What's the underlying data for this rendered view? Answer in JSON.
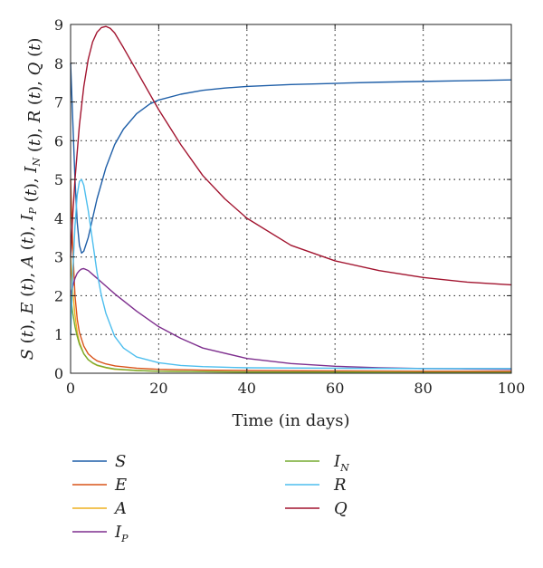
{
  "chart_data": {
    "type": "line",
    "xlabel": "Time (in days)",
    "ylabel_parts": [
      {
        "t": "S",
        "i": true
      },
      {
        "t": " (",
        "i": false
      },
      {
        "t": "t",
        "i": true
      },
      {
        "t": "), ",
        "i": false
      },
      {
        "t": "E",
        "i": true
      },
      {
        "t": " (",
        "i": false
      },
      {
        "t": "t",
        "i": true
      },
      {
        "t": "), ",
        "i": false
      },
      {
        "t": "A",
        "i": true
      },
      {
        "t": " (",
        "i": false
      },
      {
        "t": "t",
        "i": true
      },
      {
        "t": "), ",
        "i": false
      },
      {
        "t": "I",
        "i": true
      },
      {
        "t": "P",
        "i": true,
        "sub": true
      },
      {
        "t": " (",
        "i": false
      },
      {
        "t": "t",
        "i": true
      },
      {
        "t": "), ",
        "i": false
      },
      {
        "t": "I",
        "i": true
      },
      {
        "t": "N",
        "i": true,
        "sub": true
      },
      {
        "t": " (",
        "i": false
      },
      {
        "t": "t",
        "i": true
      },
      {
        "t": "), ",
        "i": false
      },
      {
        "t": "R",
        "i": true
      },
      {
        "t": " (",
        "i": false
      },
      {
        "t": "t",
        "i": true
      },
      {
        "t": "), ",
        "i": false
      },
      {
        "t": "Q",
        "i": true
      },
      {
        "t": " (",
        "i": false
      },
      {
        "t": "t",
        "i": true
      },
      {
        "t": ")",
        "i": false
      }
    ],
    "xlim": [
      0,
      100
    ],
    "ylim": [
      0,
      9
    ],
    "xticks": [
      0,
      20,
      40,
      60,
      80,
      100
    ],
    "yticks": [
      0,
      1,
      2,
      3,
      4,
      5,
      6,
      7,
      8,
      9
    ],
    "grid": true,
    "legend_position": "bottom",
    "series": [
      {
        "key": "S",
        "name": "S",
        "sub": "",
        "color": "#1f5fa8",
        "x": [
          0,
          0.5,
          1,
          1.5,
          2,
          2.5,
          3,
          4,
          5,
          6,
          8,
          10,
          12,
          15,
          18,
          20,
          25,
          30,
          35,
          40,
          50,
          60,
          70,
          80,
          90,
          100
        ],
        "y": [
          8.0,
          6.5,
          5.0,
          3.9,
          3.3,
          3.1,
          3.15,
          3.5,
          4.0,
          4.5,
          5.3,
          5.9,
          6.3,
          6.7,
          6.95,
          7.05,
          7.2,
          7.3,
          7.36,
          7.4,
          7.45,
          7.48,
          7.51,
          7.53,
          7.55,
          7.57
        ]
      },
      {
        "key": "E",
        "name": "E",
        "sub": "",
        "color": "#d95319",
        "x": [
          0,
          0.5,
          1,
          1.5,
          2,
          3,
          4,
          5,
          6,
          8,
          10,
          15,
          20,
          30,
          40,
          60,
          80,
          100
        ],
        "y": [
          5.0,
          3.2,
          2.0,
          1.4,
          1.05,
          0.7,
          0.5,
          0.4,
          0.32,
          0.24,
          0.19,
          0.13,
          0.1,
          0.08,
          0.07,
          0.06,
          0.05,
          0.05
        ]
      },
      {
        "key": "A",
        "name": "A",
        "sub": "",
        "color": "#edb120",
        "x": [
          0,
          0.5,
          1,
          1.5,
          2,
          3,
          4,
          5,
          6,
          8,
          10,
          15,
          20,
          30,
          40,
          60,
          80,
          100
        ],
        "y": [
          3.0,
          2.1,
          1.5,
          1.05,
          0.8,
          0.5,
          0.35,
          0.26,
          0.2,
          0.14,
          0.1,
          0.07,
          0.05,
          0.04,
          0.03,
          0.03,
          0.02,
          0.02
        ]
      },
      {
        "key": "IP",
        "name": "I",
        "sub": "P",
        "color": "#7e2f8e",
        "x": [
          0,
          0.5,
          1,
          1.5,
          2,
          2.5,
          3,
          4,
          5,
          6,
          8,
          10,
          15,
          20,
          25,
          30,
          40,
          50,
          60,
          70,
          80,
          90,
          100
        ],
        "y": [
          2.0,
          2.25,
          2.45,
          2.58,
          2.65,
          2.69,
          2.7,
          2.65,
          2.55,
          2.45,
          2.25,
          2.05,
          1.6,
          1.2,
          0.9,
          0.65,
          0.38,
          0.25,
          0.18,
          0.14,
          0.12,
          0.11,
          0.1
        ]
      },
      {
        "key": "IN",
        "name": "I",
        "sub": "N",
        "color": "#77ac30",
        "x": [
          0,
          0.5,
          1,
          1.5,
          2,
          3,
          4,
          5,
          6,
          8,
          10,
          15,
          20,
          30,
          40,
          60,
          80,
          100
        ],
        "y": [
          2.0,
          1.55,
          1.2,
          0.95,
          0.75,
          0.5,
          0.35,
          0.27,
          0.21,
          0.15,
          0.11,
          0.07,
          0.05,
          0.04,
          0.03,
          0.03,
          0.02,
          0.02
        ]
      },
      {
        "key": "R",
        "name": "R",
        "sub": "",
        "color": "#4dbeee",
        "x": [
          0,
          0.5,
          1,
          1.5,
          2,
          2.5,
          3,
          4,
          5,
          6,
          7,
          8,
          10,
          12,
          15,
          20,
          25,
          30,
          40,
          60,
          80,
          100
        ],
        "y": [
          1.0,
          2.6,
          3.8,
          4.6,
          4.95,
          5.0,
          4.85,
          4.2,
          3.4,
          2.6,
          2.0,
          1.55,
          0.95,
          0.65,
          0.42,
          0.27,
          0.2,
          0.17,
          0.14,
          0.13,
          0.12,
          0.12
        ]
      },
      {
        "key": "Q",
        "name": "Q",
        "sub": "",
        "color": "#a2142f",
        "x": [
          0,
          0.5,
          1,
          2,
          3,
          4,
          5,
          6,
          7,
          8,
          9,
          10,
          12,
          15,
          20,
          25,
          30,
          35,
          40,
          50,
          60,
          70,
          80,
          90,
          100
        ],
        "y": [
          3.0,
          4.1,
          5.0,
          6.4,
          7.4,
          8.1,
          8.55,
          8.8,
          8.92,
          8.95,
          8.9,
          8.78,
          8.4,
          7.8,
          6.8,
          5.9,
          5.1,
          4.5,
          4.0,
          3.3,
          2.9,
          2.65,
          2.47,
          2.35,
          2.28
        ]
      }
    ]
  }
}
